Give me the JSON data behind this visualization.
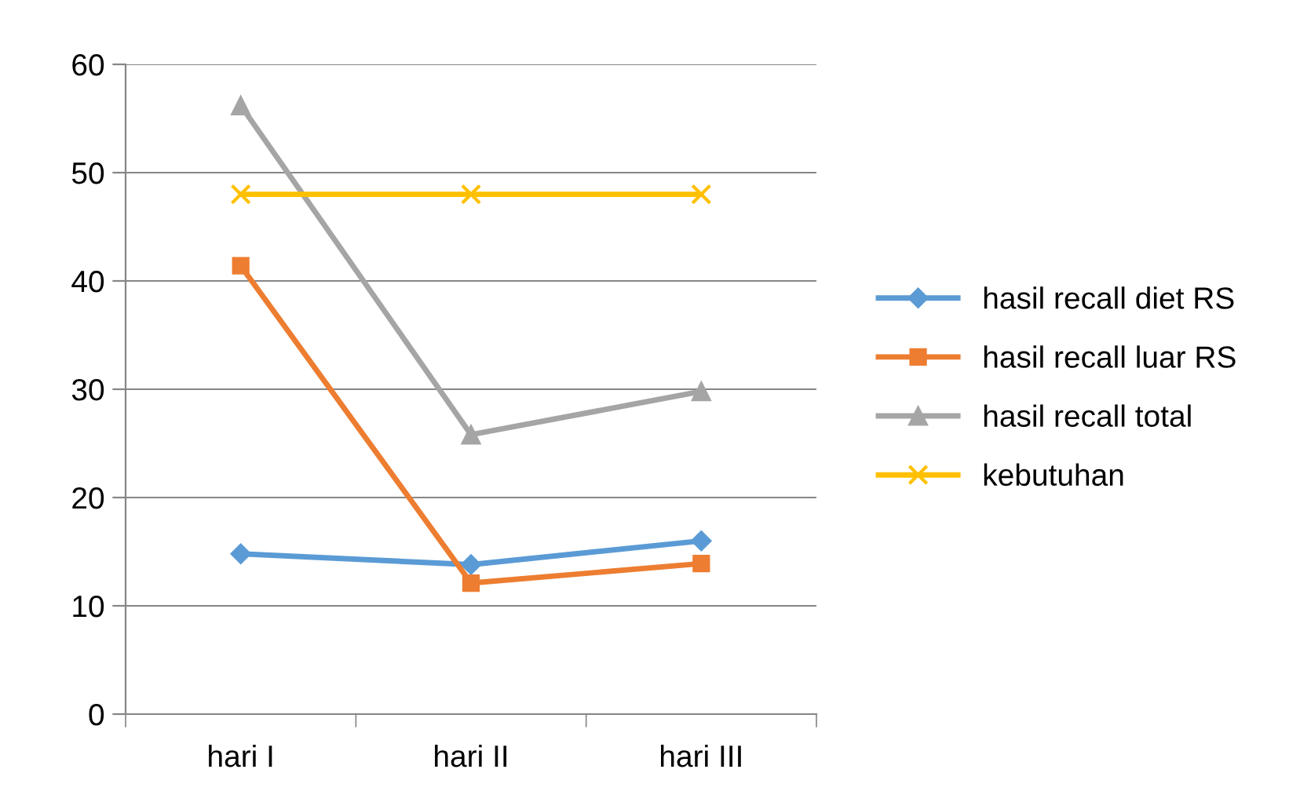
{
  "chart_data": {
    "type": "line",
    "categories": [
      "hari I",
      "hari II",
      "hari III"
    ],
    "series": [
      {
        "name": "hasil recall diet RS",
        "color": "#5b9bd5",
        "marker": "diamond",
        "values": [
          14.8,
          13.8,
          16.0
        ]
      },
      {
        "name": "hasil recall luar RS",
        "color": "#ed7d31",
        "marker": "square",
        "values": [
          41.4,
          12.1,
          13.9
        ]
      },
      {
        "name": "hasil recall total",
        "color": "#a5a5a5",
        "marker": "triangle",
        "values": [
          56.2,
          25.8,
          29.8
        ]
      },
      {
        "name": "kebutuhan",
        "color": "#ffc000",
        "marker": "cross",
        "values": [
          48,
          48,
          48
        ]
      }
    ],
    "ylim": [
      0,
      60
    ],
    "yticks": [
      0,
      10,
      20,
      30,
      40,
      50,
      60
    ],
    "grid": "y",
    "legend": "right"
  }
}
